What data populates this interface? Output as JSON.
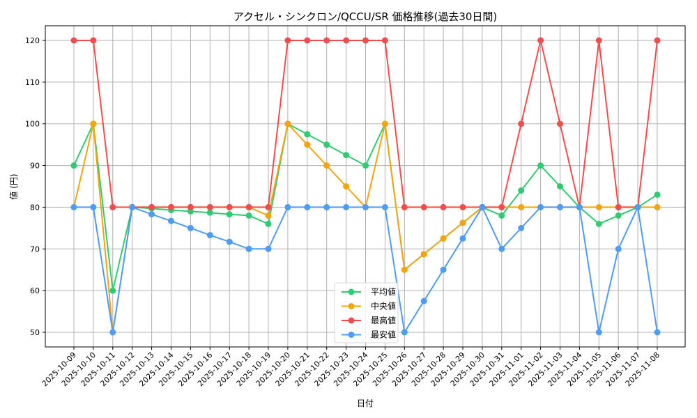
{
  "chart_data": {
    "type": "line",
    "title": "アクセル・シンクロン/QCCU/SR 価格推移(過去30日間)",
    "xlabel": "日付",
    "ylabel": "値 (円)",
    "ylim": [
      46.5,
      123.5
    ],
    "yticks": [
      50,
      60,
      70,
      80,
      90,
      100,
      110,
      120
    ],
    "grid": true,
    "legend_position": "lower center",
    "categories": [
      "2025-10-09",
      "2025-10-10",
      "2025-10-11",
      "2025-10-12",
      "2025-10-13",
      "2025-10-14",
      "2025-10-15",
      "2025-10-16",
      "2025-10-17",
      "2025-10-18",
      "2025-10-19",
      "2025-10-20",
      "2025-10-21",
      "2025-10-22",
      "2025-10-23",
      "2025-10-24",
      "2025-10-25",
      "2025-10-26",
      "2025-10-27",
      "2025-10-28",
      "2025-10-29",
      "2025-10-30",
      "2025-10-31",
      "2025-11-01",
      "2025-11-02",
      "2025-11-03",
      "2025-11-04",
      "2025-11-05",
      "2025-11-06",
      "2025-11-07",
      "2025-11-08"
    ],
    "series": [
      {
        "name": "平均値",
        "color": "#2ecc71",
        "values": [
          90,
          100,
          60,
          80,
          79.7,
          79.3,
          79,
          78.7,
          78.3,
          78,
          76,
          100,
          97.5,
          95,
          92.5,
          90,
          100,
          65,
          68.75,
          72.5,
          76.25,
          80,
          78,
          84,
          90,
          85,
          80,
          76,
          78,
          80,
          83
        ]
      },
      {
        "name": "中央値",
        "color": "#f5a40c",
        "values": [
          80,
          100,
          50,
          80,
          80,
          80,
          80,
          80,
          80,
          80,
          78,
          100,
          95,
          90,
          85,
          80,
          100,
          65,
          68.75,
          72.5,
          76.25,
          80,
          80,
          80,
          80,
          80,
          80,
          80,
          80,
          80,
          80
        ]
      },
      {
        "name": "最高値",
        "color": "#f24c4c",
        "values": [
          120,
          120,
          80,
          80,
          80,
          80,
          80,
          80,
          80,
          80,
          80,
          120,
          120,
          120,
          120,
          120,
          120,
          80,
          80,
          80,
          80,
          80,
          80,
          100,
          120,
          100,
          80,
          120,
          80,
          80,
          120
        ]
      },
      {
        "name": "最安値",
        "color": "#4d9cf5",
        "values": [
          80,
          80,
          50,
          80,
          78.3,
          76.7,
          75,
          73.3,
          71.7,
          70,
          70,
          80,
          80,
          80,
          80,
          80,
          80,
          50,
          57.5,
          65,
          72.5,
          80,
          70,
          75,
          80,
          80,
          80,
          50,
          70,
          80,
          50
        ]
      }
    ]
  }
}
